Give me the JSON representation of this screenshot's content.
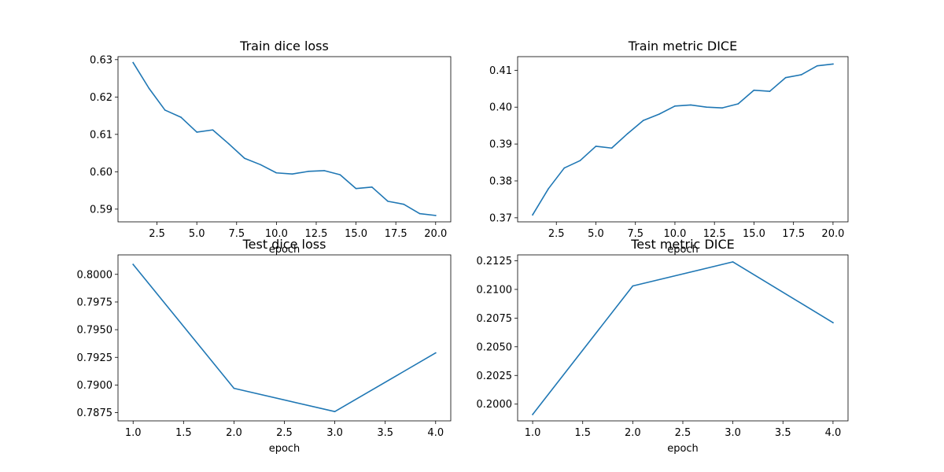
{
  "chart_data": [
    {
      "type": "line",
      "title": "Train dice loss",
      "xlabel": "epoch",
      "ylabel": "",
      "xlim": [
        0.05,
        20.95
      ],
      "ylim": [
        0.5866,
        0.6308
      ],
      "xticks": [
        2.5,
        5.0,
        7.5,
        10.0,
        12.5,
        15.0,
        17.5,
        20.0
      ],
      "xtick_labels": [
        "2.5",
        "5.0",
        "7.5",
        "10.0",
        "12.5",
        "15.0",
        "17.5",
        "20.0"
      ],
      "yticks": [
        0.59,
        0.6,
        0.61,
        0.62,
        0.63
      ],
      "ytick_labels": [
        "0.59",
        "0.60",
        "0.61",
        "0.62",
        "0.63"
      ],
      "grid": false,
      "color": "#1f77b4",
      "x": [
        1,
        2,
        3,
        4,
        5,
        6,
        7,
        8,
        9,
        10,
        11,
        12,
        13,
        14,
        15,
        16,
        17,
        18,
        19,
        20
      ],
      "y": [
        0.6292,
        0.6223,
        0.6165,
        0.6146,
        0.6106,
        0.6112,
        0.6075,
        0.6036,
        0.6019,
        0.5997,
        0.5994,
        0.6001,
        0.6003,
        0.5992,
        0.5955,
        0.5959,
        0.5921,
        0.5913,
        0.5888,
        0.5883
      ]
    },
    {
      "type": "line",
      "title": "Train metric DICE",
      "xlabel": "epoch",
      "ylabel": "",
      "xlim": [
        0.05,
        20.95
      ],
      "ylim": [
        0.3689,
        0.4137
      ],
      "xticks": [
        2.5,
        5.0,
        7.5,
        10.0,
        12.5,
        15.0,
        17.5,
        20.0
      ],
      "xtick_labels": [
        "2.5",
        "5.0",
        "7.5",
        "10.0",
        "12.5",
        "15.0",
        "17.5",
        "20.0"
      ],
      "yticks": [
        0.37,
        0.38,
        0.39,
        0.4,
        0.41
      ],
      "ytick_labels": [
        "0.37",
        "0.38",
        "0.39",
        "0.40",
        "0.41"
      ],
      "grid": false,
      "color": "#1f77b4",
      "x": [
        1,
        2,
        3,
        4,
        5,
        6,
        7,
        8,
        9,
        10,
        11,
        12,
        13,
        14,
        15,
        16,
        17,
        18,
        19,
        20
      ],
      "y": [
        0.3708,
        0.3779,
        0.3835,
        0.3855,
        0.3894,
        0.3889,
        0.3928,
        0.3964,
        0.3981,
        0.4003,
        0.4006,
        0.4,
        0.3998,
        0.4009,
        0.4046,
        0.4043,
        0.408,
        0.4088,
        0.4112,
        0.4117
      ]
    },
    {
      "type": "line",
      "title": "Test dice loss",
      "xlabel": "epoch",
      "ylabel": "",
      "xlim": [
        0.85,
        4.15
      ],
      "ylim": [
        0.78676,
        0.80176
      ],
      "xticks": [
        1.0,
        1.5,
        2.0,
        2.5,
        3.0,
        3.5,
        4.0
      ],
      "xtick_labels": [
        "1.0",
        "1.5",
        "2.0",
        "2.5",
        "3.0",
        "3.5",
        "4.0"
      ],
      "yticks": [
        0.7875,
        0.79,
        0.7925,
        0.795,
        0.7975,
        0.8
      ],
      "ytick_labels": [
        "0.7875",
        "0.7900",
        "0.7925",
        "0.7950",
        "0.7975",
        "0.8000"
      ],
      "grid": false,
      "color": "#1f77b4",
      "x": [
        1,
        2,
        3,
        4
      ],
      "y": [
        0.8009,
        0.7897,
        0.7876,
        0.7929
      ]
    },
    {
      "type": "line",
      "title": "Test metric DICE",
      "xlabel": "epoch",
      "ylabel": "",
      "xlim": [
        0.85,
        4.15
      ],
      "ylim": [
        0.19854,
        0.21301
      ],
      "xticks": [
        1.0,
        1.5,
        2.0,
        2.5,
        3.0,
        3.5,
        4.0
      ],
      "xtick_labels": [
        "1.0",
        "1.5",
        "2.0",
        "2.5",
        "3.0",
        "3.5",
        "4.0"
      ],
      "yticks": [
        0.2,
        0.2025,
        0.205,
        0.2075,
        0.21,
        0.2125
      ],
      "ytick_labels": [
        "0.2000",
        "0.2025",
        "0.2050",
        "0.2075",
        "0.2100",
        "0.2125"
      ],
      "grid": false,
      "color": "#1f77b4",
      "x": [
        1,
        2,
        3,
        4
      ],
      "y": [
        0.1991,
        0.2103,
        0.2124,
        0.2071
      ]
    }
  ]
}
